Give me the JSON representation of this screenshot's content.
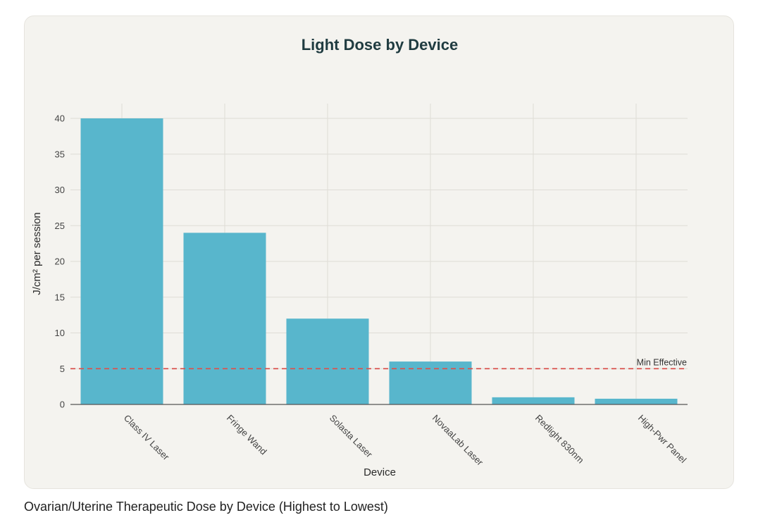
{
  "chart_data": {
    "type": "bar",
    "title": "Light Dose by Device",
    "xlabel": "Device",
    "ylabel": "J/cm² per session",
    "categories": [
      "Class IV Laser",
      "Fringe Wand",
      "Solasta Laser",
      "NovaaLab Laser",
      "Redlight 830nm",
      "High-Pwr Panel"
    ],
    "values": [
      40,
      24,
      12,
      6,
      1,
      0.8
    ],
    "ylim": [
      0,
      42
    ],
    "yticks": [
      0,
      5,
      10,
      15,
      20,
      25,
      30,
      35,
      40
    ],
    "grid": true,
    "reference_line": {
      "value": 5,
      "label": "Min Effective",
      "color": "#d9534f"
    },
    "bar_color": "#58b6cc"
  },
  "caption": "Ovarian/Uterine Therapeutic Dose by Device (Highest to Lowest)"
}
